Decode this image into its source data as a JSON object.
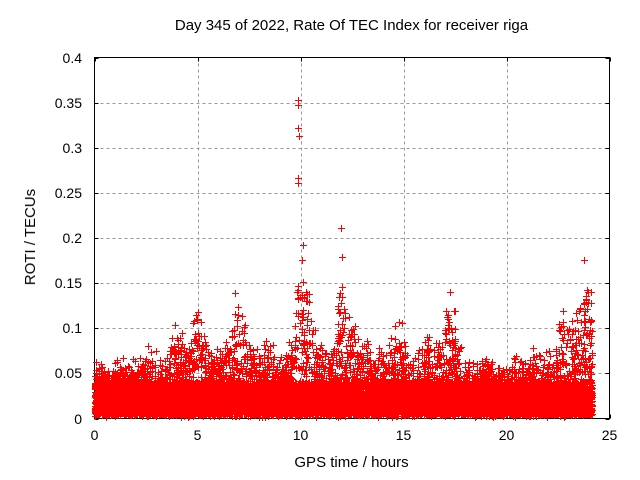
{
  "figure": {
    "background": "#ffffff",
    "text_color": "#000000"
  },
  "chart_data": {
    "type": "scatter",
    "title": "Day 345 of 2022, Rate Of TEC Index for receiver riga",
    "xlabel": "GPS time / hours",
    "ylabel": "ROTI / TECUs",
    "xlim": [
      0,
      25
    ],
    "ylim": [
      0,
      0.4
    ],
    "xticks": {
      "values": [
        0,
        5,
        10,
        15,
        20,
        25
      ],
      "labels": [
        "0",
        "5",
        "10",
        "15",
        "20",
        "25"
      ]
    },
    "yticks": {
      "values": [
        0,
        0.05,
        0.1,
        0.15,
        0.2,
        0.25,
        0.3,
        0.35,
        0.4
      ],
      "labels": [
        "0",
        "0.05",
        "0.1",
        "0.15",
        "0.2",
        "0.25",
        "0.3",
        "0.35",
        "0.4"
      ]
    },
    "grid": {
      "show": true,
      "color": "#999999",
      "dash": [
        3,
        3
      ]
    },
    "axis_color": "#000000",
    "legend": "none",
    "series": [
      {
        "name": "ROTI",
        "marker": "plus",
        "marker_size_px": 7,
        "color": "#ff0000",
        "x_range_hours": [
          0,
          24.15
        ],
        "baseline_band_tecu": [
          0.005,
          0.046
        ],
        "envelope_max": [
          [
            0.0,
            0.055
          ],
          [
            0.5,
            0.05
          ],
          [
            1.0,
            0.052
          ],
          [
            1.25,
            0.067
          ],
          [
            1.6,
            0.05
          ],
          [
            2.0,
            0.056
          ],
          [
            2.4,
            0.06
          ],
          [
            2.65,
            0.08
          ],
          [
            3.0,
            0.06
          ],
          [
            3.4,
            0.056
          ],
          [
            3.8,
            0.08
          ],
          [
            4.05,
            0.1
          ],
          [
            4.4,
            0.068
          ],
          [
            4.7,
            0.092
          ],
          [
            5.0,
            0.108
          ],
          [
            5.3,
            0.1
          ],
          [
            5.6,
            0.075
          ],
          [
            6.0,
            0.062
          ],
          [
            6.3,
            0.07
          ],
          [
            6.6,
            0.082
          ],
          [
            6.9,
            0.1
          ],
          [
            7.2,
            0.106
          ],
          [
            7.5,
            0.08
          ],
          [
            7.8,
            0.07
          ],
          [
            8.1,
            0.066
          ],
          [
            8.4,
            0.075
          ],
          [
            8.8,
            0.062
          ],
          [
            9.2,
            0.068
          ],
          [
            9.6,
            0.082
          ],
          [
            9.85,
            0.152
          ],
          [
            10.1,
            0.155
          ],
          [
            10.35,
            0.14
          ],
          [
            10.6,
            0.09
          ],
          [
            10.8,
            0.075
          ],
          [
            11.1,
            0.073
          ],
          [
            11.4,
            0.06
          ],
          [
            11.7,
            0.08
          ],
          [
            11.95,
            0.148
          ],
          [
            12.2,
            0.09
          ],
          [
            12.55,
            0.098
          ],
          [
            12.9,
            0.07
          ],
          [
            13.1,
            0.081
          ],
          [
            13.5,
            0.056
          ],
          [
            13.9,
            0.066
          ],
          [
            14.2,
            0.06
          ],
          [
            14.6,
            0.088
          ],
          [
            14.9,
            0.095
          ],
          [
            15.2,
            0.062
          ],
          [
            15.6,
            0.06
          ],
          [
            16.1,
            0.086
          ],
          [
            16.45,
            0.062
          ],
          [
            16.8,
            0.08
          ],
          [
            17.1,
            0.11
          ],
          [
            17.3,
            0.126
          ],
          [
            17.6,
            0.08
          ],
          [
            18.0,
            0.06
          ],
          [
            18.4,
            0.056
          ],
          [
            18.8,
            0.06
          ],
          [
            19.2,
            0.055
          ],
          [
            19.6,
            0.05
          ],
          [
            20.0,
            0.056
          ],
          [
            20.4,
            0.06
          ],
          [
            20.8,
            0.056
          ],
          [
            21.15,
            0.07
          ],
          [
            21.6,
            0.062
          ],
          [
            22.0,
            0.065
          ],
          [
            22.4,
            0.075
          ],
          [
            22.7,
            0.11
          ],
          [
            23.0,
            0.1
          ],
          [
            23.3,
            0.09
          ],
          [
            23.6,
            0.12
          ],
          [
            23.85,
            0.145
          ],
          [
            24.0,
            0.132
          ],
          [
            24.15,
            0.105
          ]
        ],
        "outliers": [
          [
            9.86,
            0.353
          ],
          [
            9.88,
            0.347
          ],
          [
            9.9,
            0.322
          ],
          [
            9.91,
            0.313
          ],
          [
            9.87,
            0.266
          ],
          [
            9.89,
            0.261
          ],
          [
            11.98,
            0.211
          ],
          [
            12.0,
            0.179
          ],
          [
            23.78,
            0.176
          ],
          [
            10.12,
            0.151
          ],
          [
            12.02,
            0.146
          ],
          [
            6.82,
            0.139
          ],
          [
            10.28,
            0.14
          ],
          [
            10.33,
            0.13
          ],
          [
            6.95,
            0.124
          ],
          [
            23.9,
            0.142
          ],
          [
            23.86,
            0.136
          ]
        ]
      }
    ],
    "n_points": 16000,
    "seed": 2022345
  }
}
